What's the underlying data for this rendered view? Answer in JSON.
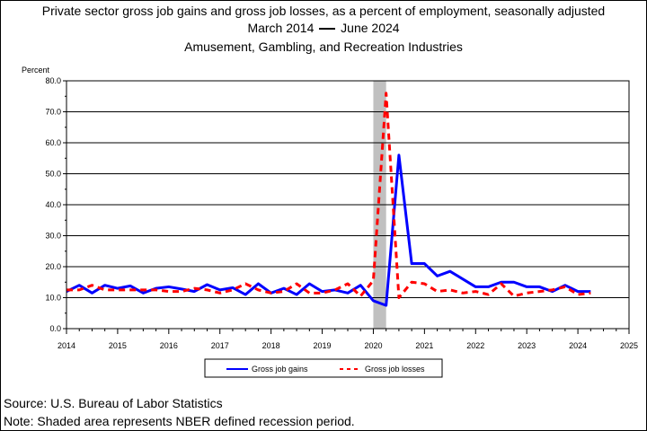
{
  "title": {
    "line1": "Private sector gross job gains and gross job losses, as a percent of employment, seasonally adjusted",
    "line2_start": "March 2014",
    "line2_end": "June 2024",
    "line3": "Amusement, Gambling, and Recreation Industries"
  },
  "footer": {
    "source": "Source: U.S. Bureau of Labor Statistics",
    "note": "Note: Shaded area represents NBER defined recession period."
  },
  "chart_data": {
    "type": "line",
    "ylabel": "Percent",
    "xlim": [
      2014,
      2025
    ],
    "ylim": [
      0,
      80
    ],
    "x_ticks": [
      "2014",
      "2015",
      "2016",
      "2017",
      "2018",
      "2019",
      "2020",
      "2021",
      "2022",
      "2023",
      "2024",
      "2025"
    ],
    "y_ticks": [
      "0.0",
      "10.0",
      "20.0",
      "30.0",
      "40.0",
      "50.0",
      "60.0",
      "70.0",
      "80.0"
    ],
    "grid": "horizontal",
    "legend_position": "bottom",
    "recession": {
      "start": 2020.0,
      "end": 2020.25,
      "color": "#c0c0c0"
    },
    "x": [
      2014.0,
      2014.25,
      2014.5,
      2014.75,
      2015.0,
      2015.25,
      2015.5,
      2015.75,
      2016.0,
      2016.25,
      2016.5,
      2016.75,
      2017.0,
      2017.25,
      2017.5,
      2017.75,
      2018.0,
      2018.25,
      2018.5,
      2018.75,
      2019.0,
      2019.25,
      2019.5,
      2019.75,
      2020.0,
      2020.25,
      2020.5,
      2020.75,
      2021.0,
      2021.25,
      2021.5,
      2021.75,
      2022.0,
      2022.25,
      2022.5,
      2022.75,
      2023.0,
      2023.25,
      2023.5,
      2023.75,
      2024.0,
      2024.25
    ],
    "series": [
      {
        "name": "Gross job gains",
        "color": "#0000ff",
        "dash": "solid",
        "values": [
          12.0,
          14.0,
          11.5,
          14.0,
          13.0,
          13.8,
          11.5,
          13.0,
          13.5,
          12.8,
          12.0,
          14.2,
          12.5,
          13.2,
          11.0,
          14.5,
          11.5,
          13.0,
          11.0,
          14.5,
          12.0,
          12.5,
          11.5,
          14.0,
          9.0,
          7.5,
          56.0,
          21.0,
          21.0,
          17.0,
          18.5,
          16.0,
          13.5,
          13.5,
          15.0,
          15.0,
          13.5,
          13.5,
          12.0,
          14.0,
          12.0,
          12.0
        ]
      },
      {
        "name": "Gross job losses",
        "color": "#ff0000",
        "dash": "dashed",
        "values": [
          12.5,
          12.5,
          14.0,
          12.5,
          12.5,
          12.5,
          12.5,
          12.5,
          12.0,
          12.0,
          13.0,
          12.5,
          11.5,
          12.5,
          14.5,
          12.5,
          11.5,
          12.0,
          14.5,
          11.5,
          11.5,
          12.5,
          14.5,
          10.5,
          15.5,
          76.0,
          10.0,
          15.0,
          14.5,
          12.0,
          12.5,
          11.5,
          12.0,
          11.0,
          14.5,
          10.5,
          11.5,
          12.0,
          12.5,
          13.5,
          11.0,
          11.5
        ]
      }
    ]
  }
}
